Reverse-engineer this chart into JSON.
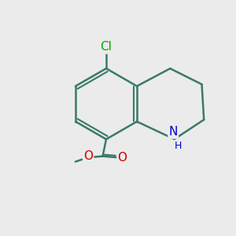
{
  "background_color": "#ebebeb",
  "bond_color": "#3a7a6a",
  "bond_width": 1.8,
  "atom_colors": {
    "N": "#0000cc",
    "O": "#cc0000",
    "Cl": "#00aa00",
    "C": "#3a7a6a"
  },
  "font_size_atom": 11,
  "font_size_H": 9
}
